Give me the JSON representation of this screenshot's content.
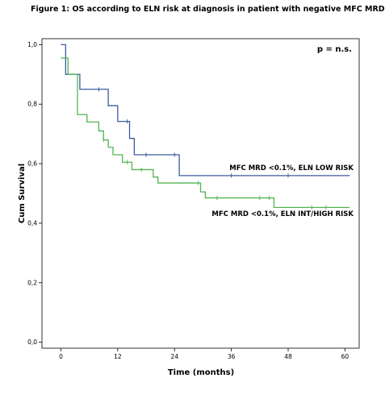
{
  "figure_title": "Figure 1: OS according to ELN risk at diagnosis in patient with negative MFC MRD",
  "chart_data": {
    "type": "line",
    "subtype": "kaplan-meier step",
    "xlabel": "Time (months)",
    "ylabel": "Cum Survival",
    "xlim": [
      -4,
      63
    ],
    "ylim": [
      -0.02,
      1.02
    ],
    "x_ticks": [
      "0",
      "12",
      "24",
      "36",
      "48",
      "60"
    ],
    "y_ticks": [
      "0,0",
      "0,2",
      "0,4",
      "0,6",
      "0,8",
      "1,0"
    ],
    "annotation": "p = n.s.",
    "grid": false,
    "series": [
      {
        "name": "MFC MRD <0.1%, ELN LOW RISK",
        "color": "#3b5c9e",
        "steps": [
          {
            "x": 0,
            "y": 1.0
          },
          {
            "x": 1,
            "y": 0.9
          },
          {
            "x": 4,
            "y": 0.85
          },
          {
            "x": 10,
            "y": 0.795
          },
          {
            "x": 12,
            "y": 0.742
          },
          {
            "x": 14.5,
            "y": 0.685
          },
          {
            "x": 15.5,
            "y": 0.63
          },
          {
            "x": 25,
            "y": 0.56
          },
          {
            "x": 61,
            "y": 0.56
          }
        ],
        "censored": [
          8,
          14,
          18,
          24,
          36,
          48
        ]
      },
      {
        "name": "MFC MRD <0.1%, ELN INT/HIGH RISK",
        "color": "#52b552",
        "steps": [
          {
            "x": 0,
            "y": 0.955
          },
          {
            "x": 1.5,
            "y": 0.9
          },
          {
            "x": 3.5,
            "y": 0.765
          },
          {
            "x": 5.5,
            "y": 0.74
          },
          {
            "x": 8,
            "y": 0.71
          },
          {
            "x": 9,
            "y": 0.68
          },
          {
            "x": 10,
            "y": 0.655
          },
          {
            "x": 11,
            "y": 0.63
          },
          {
            "x": 13,
            "y": 0.605
          },
          {
            "x": 15,
            "y": 0.58
          },
          {
            "x": 19.5,
            "y": 0.555
          },
          {
            "x": 20.5,
            "y": 0.535
          },
          {
            "x": 29.5,
            "y": 0.505
          },
          {
            "x": 30.5,
            "y": 0.485
          },
          {
            "x": 45,
            "y": 0.453
          },
          {
            "x": 61,
            "y": 0.453
          }
        ],
        "censored": [
          9,
          14,
          17,
          29,
          33,
          42,
          44,
          53,
          56
        ]
      }
    ]
  }
}
